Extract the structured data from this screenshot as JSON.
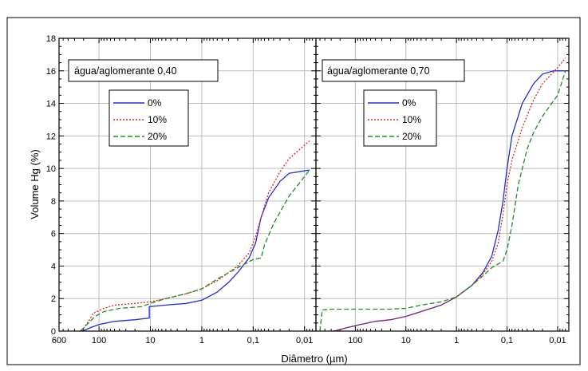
{
  "chart_data": {
    "type": "line",
    "ylabel": "Volume Hg (%)",
    "xlabel": "Diâmetro (µm)",
    "ylim": [
      0,
      18
    ],
    "yticks": [
      "0",
      "2",
      "4",
      "6",
      "8",
      "10",
      "12",
      "14",
      "16",
      "18"
    ],
    "xlim": [
      600,
      0.006
    ],
    "x_scale": "log (reversed)",
    "xticks": [
      {
        "value": 600,
        "label": "600"
      },
      {
        "value": 100,
        "label": "100"
      },
      {
        "value": 10,
        "label": "10"
      },
      {
        "value": 1,
        "label": "1"
      },
      {
        "value": 0.1,
        "label": "0,1"
      },
      {
        "value": 0.01,
        "label": "0,01"
      }
    ],
    "grid": true,
    "legend_placement": "upper-left",
    "colors": {
      "0%": "#1f2fd6",
      "10%": "#e8211c",
      "20%": "#1f8f1f"
    },
    "panels": [
      {
        "annotation": "água/aglomerante 0,40",
        "series": [
          {
            "name": "0%",
            "color": "#1f2fd6",
            "dash": "solid",
            "points": [
              [
                210,
                0
              ],
              [
                150,
                0.2
              ],
              [
                100,
                0.4
              ],
              [
                50,
                0.6
              ],
              [
                20,
                0.7
              ],
              [
                10.5,
                0.8
              ],
              [
                10.5,
                1.5
              ],
              [
                5,
                1.6
              ],
              [
                2,
                1.7
              ],
              [
                1,
                1.9
              ],
              [
                0.5,
                2.4
              ],
              [
                0.3,
                3
              ],
              [
                0.2,
                3.6
              ],
              [
                0.12,
                4.5
              ],
              [
                0.09,
                5.4
              ],
              [
                0.07,
                7
              ],
              [
                0.05,
                8.2
              ],
              [
                0.03,
                9.2
              ],
              [
                0.02,
                9.7
              ],
              [
                0.008,
                9.9
              ]
            ]
          },
          {
            "name": "10%",
            "color": "#e8211c",
            "dash": "dot",
            "points": [
              [
                220,
                0
              ],
              [
                160,
                0.6
              ],
              [
                130,
                1.1
              ],
              [
                80,
                1.4
              ],
              [
                50,
                1.6
              ],
              [
                20,
                1.7
              ],
              [
                10,
                1.8
              ],
              [
                5,
                2
              ],
              [
                2,
                2.3
              ],
              [
                1,
                2.6
              ],
              [
                0.5,
                3.1
              ],
              [
                0.2,
                4
              ],
              [
                0.12,
                4.8
              ],
              [
                0.09,
                5.8
              ],
              [
                0.07,
                7
              ],
              [
                0.05,
                8.5
              ],
              [
                0.03,
                9.8
              ],
              [
                0.02,
                10.6
              ],
              [
                0.008,
                11.7
              ]
            ]
          },
          {
            "name": "20%",
            "color": "#1f8f1f",
            "dash": "dash",
            "points": [
              [
                230,
                0
              ],
              [
                160,
                0.5
              ],
              [
                120,
                0.9
              ],
              [
                80,
                1.2
              ],
              [
                40,
                1.4
              ],
              [
                15,
                1.5
              ],
              [
                10,
                1.7
              ],
              [
                5,
                2
              ],
              [
                2,
                2.3
              ],
              [
                1,
                2.6
              ],
              [
                0.5,
                3.2
              ],
              [
                0.2,
                3.9
              ],
              [
                0.1,
                4.4
              ],
              [
                0.07,
                4.5
              ],
              [
                0.06,
                5.3
              ],
              [
                0.04,
                6.6
              ],
              [
                0.02,
                8.3
              ],
              [
                0.01,
                9.5
              ],
              [
                0.008,
                9.9
              ]
            ]
          }
        ]
      },
      {
        "annotation": "água/aglomerante 0,70",
        "series": [
          {
            "name": "0%",
            "color": "#1f2fd6",
            "dash": "solid",
            "points": [
              [
                260,
                0
              ],
              [
                150,
                0.2
              ],
              [
                80,
                0.4
              ],
              [
                40,
                0.6
              ],
              [
                20,
                0.7
              ],
              [
                10,
                0.9
              ],
              [
                5,
                1.2
              ],
              [
                2,
                1.6
              ],
              [
                1,
                2.1
              ],
              [
                0.5,
                2.8
              ],
              [
                0.3,
                3.6
              ],
              [
                0.2,
                4.6
              ],
              [
                0.15,
                6.2
              ],
              [
                0.12,
                8
              ],
              [
                0.1,
                10
              ],
              [
                0.08,
                12
              ],
              [
                0.05,
                14
              ],
              [
                0.03,
                15.2
              ],
              [
                0.02,
                15.8
              ],
              [
                0.012,
                16
              ],
              [
                0.007,
                16
              ]
            ]
          },
          {
            "name": "10%",
            "color": "#e8211c",
            "dash": "dot",
            "points": [
              [
                270,
                0
              ],
              [
                150,
                0.2
              ],
              [
                80,
                0.4
              ],
              [
                40,
                0.6
              ],
              [
                20,
                0.7
              ],
              [
                10,
                0.9
              ],
              [
                5,
                1.2
              ],
              [
                2,
                1.6
              ],
              [
                1,
                2.1
              ],
              [
                0.5,
                2.8
              ],
              [
                0.3,
                3.5
              ],
              [
                0.2,
                4.3
              ],
              [
                0.15,
                5.4
              ],
              [
                0.12,
                7.2
              ],
              [
                0.1,
                9
              ],
              [
                0.08,
                10.5
              ],
              [
                0.05,
                12.5
              ],
              [
                0.03,
                14.2
              ],
              [
                0.02,
                15.2
              ],
              [
                0.01,
                16.2
              ],
              [
                0.007,
                16.8
              ]
            ]
          },
          {
            "name": "20%",
            "color": "#1f8f1f",
            "dash": "dash",
            "points": [
              [
                500,
                0
              ],
              [
                450,
                1.3
              ],
              [
                300,
                1.35
              ],
              [
                100,
                1.35
              ],
              [
                20,
                1.35
              ],
              [
                10,
                1.4
              ],
              [
                5,
                1.6
              ],
              [
                2,
                1.8
              ],
              [
                1,
                2.1
              ],
              [
                0.5,
                2.8
              ],
              [
                0.3,
                3.4
              ],
              [
                0.2,
                3.9
              ],
              [
                0.12,
                4.3
              ],
              [
                0.1,
                5
              ],
              [
                0.08,
                6.5
              ],
              [
                0.06,
                9
              ],
              [
                0.04,
                11.2
              ],
              [
                0.03,
                12.2
              ],
              [
                0.02,
                13.2
              ],
              [
                0.01,
                14.5
              ],
              [
                0.007,
                16
              ]
            ]
          }
        ]
      }
    ]
  }
}
